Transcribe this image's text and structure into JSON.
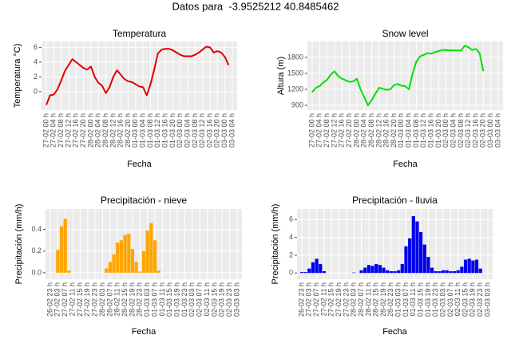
{
  "title": "Datos para  -3.9525212 40.8485462",
  "chart_data": [
    {
      "type": "line",
      "title": "Temperatura",
      "xlabel": "Fecha",
      "ylabel": "Temperatura °C)",
      "color": "#e00000",
      "categories": [
        "27-02 00 h",
        null,
        "27-02 04 h",
        null,
        "27-02 08 h",
        null,
        "27-02 12 h",
        null,
        "27-02 16 h",
        null,
        "27-02 20 h",
        null,
        "28-02 00 h",
        null,
        "28-02 04 h",
        null,
        "28-02 08 h",
        null,
        "28-02 12 h",
        null,
        "28-02 16 h",
        null,
        "28-02 20 h",
        null,
        "01-03 00 h",
        null,
        "01-03 04 h",
        null,
        "01-03 08 h",
        null,
        "01-03 12 h",
        null,
        "01-03 16 h",
        null,
        "01-03 20 h",
        null,
        "02-03 00 h",
        null,
        "02-03 04 h",
        null,
        "02-03 08 h",
        null,
        "02-03 12 h",
        null,
        "02-03 16 h",
        null,
        "02-03 20 h",
        null,
        "03-03 00 h",
        null,
        "03-03 04 h"
      ],
      "values": [
        -1.8,
        -0.5,
        -0.4,
        0.3,
        1.5,
        2.8,
        3.6,
        4.4,
        4.0,
        3.6,
        3.2,
        3.0,
        3.4,
        2.0,
        1.2,
        0.8,
        -0.2,
        0.6,
        2.0,
        2.9,
        2.3,
        1.7,
        1.4,
        1.3,
        1.0,
        0.7,
        0.6,
        -0.5,
        1.0,
        3.0,
        5.2,
        5.7,
        5.8,
        5.8,
        5.6,
        5.3,
        5.0,
        4.8,
        4.8,
        4.8,
        5.0,
        5.3,
        5.7,
        6.1,
        6.0,
        5.3,
        5.5,
        5.3,
        4.7,
        3.6,
        null
      ],
      "ylim": [
        -2.5,
        6.8
      ],
      "yticks": [
        0,
        2,
        4,
        6
      ],
      "grid": true
    },
    {
      "type": "line",
      "title": "Snow level",
      "xlabel": "Fecha",
      "ylabel": "Altura (m)",
      "color": "#00e000",
      "categories": [
        "27-02 00 h",
        null,
        "27-02 04 h",
        null,
        "27-02 08 h",
        null,
        "27-02 12 h",
        null,
        "27-02 16 h",
        null,
        "27-02 20 h",
        null,
        "28-02 00 h",
        null,
        "28-02 04 h",
        null,
        "28-02 08 h",
        null,
        "28-02 12 h",
        null,
        "28-02 16 h",
        null,
        "28-02 20 h",
        null,
        "01-03 00 h",
        null,
        "01-03 04 h",
        null,
        "01-03 08 h",
        null,
        "01-03 12 h",
        null,
        "01-03 16 h",
        null,
        "01-03 20 h",
        null,
        "02-03 00 h",
        null,
        "02-03 04 h",
        null,
        "02-03 08 h",
        null,
        "02-03 12 h",
        null,
        "02-03 16 h",
        null,
        "02-03 20 h",
        null,
        "03-03 00 h",
        null,
        "03-03 04 h"
      ],
      "values": [
        1150,
        1230,
        1260,
        1330,
        1380,
        1480,
        1540,
        1450,
        1400,
        1370,
        1340,
        1350,
        1400,
        1200,
        1050,
        900,
        1000,
        1120,
        1230,
        1210,
        1190,
        1200,
        1280,
        1300,
        1270,
        1260,
        1200,
        1500,
        1720,
        1820,
        1850,
        1880,
        1870,
        1900,
        1920,
        1940,
        1940,
        1930,
        1935,
        1930,
        1930,
        2020,
        1990,
        1940,
        1960,
        1880,
        1540,
        null,
        null,
        null,
        null
      ],
      "ylim": [
        810,
        2100
      ],
      "yticks": [
        900,
        1200,
        1500,
        1800
      ],
      "grid": true
    },
    {
      "type": "bar",
      "title": "Precipitación - nieve",
      "xlabel": "Fecha",
      "ylabel": "Precipitación (mm/h)",
      "color": "#ffa500",
      "categories": [
        "26-02 23 h",
        null,
        "27-02 03 h",
        null,
        "27-02 07 h",
        null,
        "27-02 11 h",
        null,
        "27-02 15 h",
        null,
        "27-02 19 h",
        null,
        "27-02 23 h",
        null,
        "28-02 03 h",
        null,
        "28-02 07 h",
        null,
        "28-02 11 h",
        null,
        "28-02 15 h",
        null,
        "28-02 19 h",
        null,
        "28-02 23 h",
        null,
        "01-03 03 h",
        null,
        "01-03 07 h",
        null,
        "01-03 11 h",
        null,
        "01-03 15 h",
        null,
        "01-03 19 h",
        null,
        "01-03 23 h",
        null,
        "02-03 03 h",
        null,
        "02-03 07 h",
        null,
        "02-03 11 h",
        null,
        "02-03 15 h",
        null,
        "02-03 19 h",
        null,
        "02-03 23 h",
        null,
        "03-03 03 h"
      ],
      "values": [
        0,
        0,
        0.21,
        0.43,
        0.5,
        0.02,
        0,
        0,
        0,
        0,
        0,
        0,
        0,
        0,
        0,
        0.04,
        0.1,
        0.17,
        0.28,
        0.3,
        0.35,
        0.36,
        0.22,
        0.1,
        0.01,
        0.2,
        0.39,
        0.46,
        0.3,
        0.02,
        0,
        0,
        0,
        0,
        0,
        0,
        0,
        0,
        0,
        0,
        0,
        0,
        0,
        0,
        0,
        0,
        0,
        0,
        0,
        0,
        0
      ],
      "ylim": [
        -0.06,
        0.59
      ],
      "yticks": [
        {
          "value": 0,
          "label": "0.0"
        },
        0.2,
        0.4
      ],
      "grid": true
    },
    {
      "type": "bar",
      "title": "Precipitación - lluvia",
      "xlabel": "Fecha",
      "ylabel": "Precipitación (mm/h)",
      "color": "#0000ee",
      "categories": [
        "26-02 23 h",
        null,
        "27-02 03 h",
        null,
        "27-02 07 h",
        null,
        "27-02 11 h",
        null,
        "27-02 15 h",
        null,
        "27-02 19 h",
        null,
        "27-02 23 h",
        null,
        "28-02 03 h",
        null,
        "28-02 07 h",
        null,
        "28-02 11 h",
        null,
        "28-02 15 h",
        null,
        "28-02 19 h",
        null,
        "28-02 23 h",
        null,
        "01-03 03 h",
        null,
        "01-03 07 h",
        null,
        "01-03 11 h",
        null,
        "01-03 15 h",
        null,
        "01-03 19 h",
        null,
        "01-03 23 h",
        null,
        "02-03 03 h",
        null,
        "02-03 07 h",
        null,
        "02-03 11 h",
        null,
        "02-03 15 h",
        null,
        "02-03 19 h",
        null,
        "02-03 23 h",
        null,
        "03-03 03 h"
      ],
      "values": [
        0.1,
        0.1,
        0.5,
        1.2,
        1.6,
        1.0,
        0.2,
        0,
        0,
        0,
        0,
        0,
        0,
        0,
        0.05,
        0,
        0.3,
        0.6,
        0.9,
        0.8,
        1.0,
        0.9,
        0.6,
        0.3,
        0.2,
        0.2,
        0.3,
        1.0,
        3.0,
        3.9,
        6.4,
        5.8,
        4.6,
        3.2,
        1.8,
        0.6,
        0.2,
        0.2,
        0.3,
        0.3,
        0.2,
        0.2,
        0.3,
        0.7,
        1.5,
        1.6,
        1.4,
        1.5,
        0.5,
        0,
        0
      ],
      "ylim": [
        -0.7,
        7.2
      ],
      "yticks": [
        0,
        2,
        4,
        6
      ],
      "grid": true
    }
  ]
}
